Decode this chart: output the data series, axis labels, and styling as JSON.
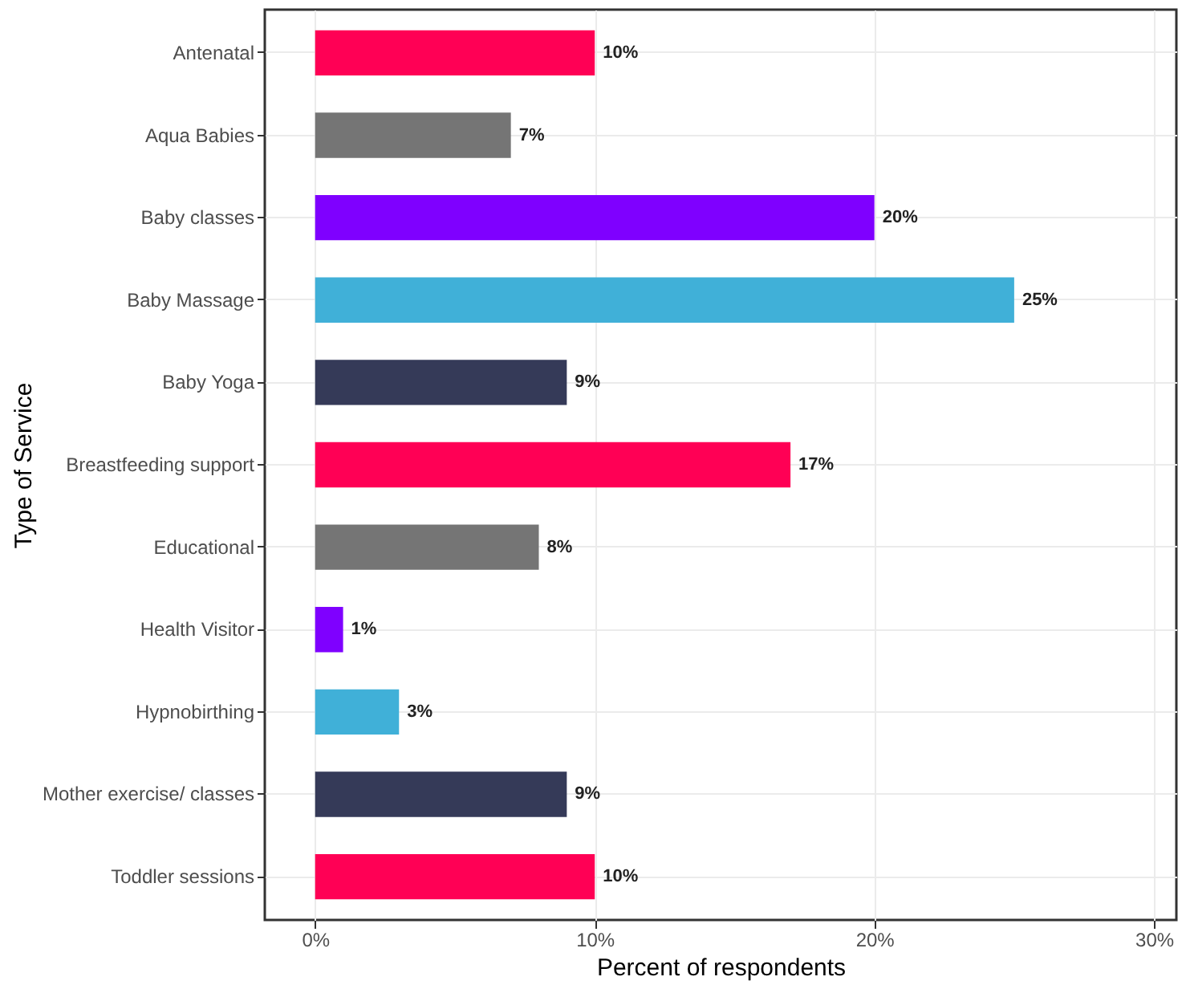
{
  "chart_data": {
    "type": "bar",
    "orientation": "horizontal",
    "xlabel": "Percent of respondents",
    "ylabel": "Type of Service",
    "categories": [
      "Antenatal",
      "Aqua Babies",
      "Baby classes",
      "Baby Massage",
      "Baby Yoga",
      "Breastfeeding support",
      "Educational",
      "Health Visitor",
      "Hypnobirthing",
      "Mother exercise/ classes",
      "Toddler sessions"
    ],
    "values": [
      10,
      7,
      20,
      25,
      9,
      17,
      8,
      1,
      3,
      9,
      10
    ],
    "value_labels": [
      "10%",
      "7%",
      "20%",
      "25%",
      "9%",
      "17%",
      "8%",
      "1%",
      "3%",
      "9%",
      "10%"
    ],
    "colors": [
      "#ff0055",
      "#757575",
      "#7f00ff",
      "#40b0d8",
      "#353a58",
      "#ff0055",
      "#757575",
      "#7f00ff",
      "#40b0d8",
      "#353a58",
      "#ff0055"
    ],
    "xlim": [
      -1.8,
      30.8
    ],
    "xticks": [
      {
        "value": 0,
        "label": "0%"
      },
      {
        "value": 10,
        "label": "10%"
      },
      {
        "value": 20,
        "label": "20%"
      },
      {
        "value": 30,
        "label": "30%"
      }
    ],
    "grid": true
  }
}
